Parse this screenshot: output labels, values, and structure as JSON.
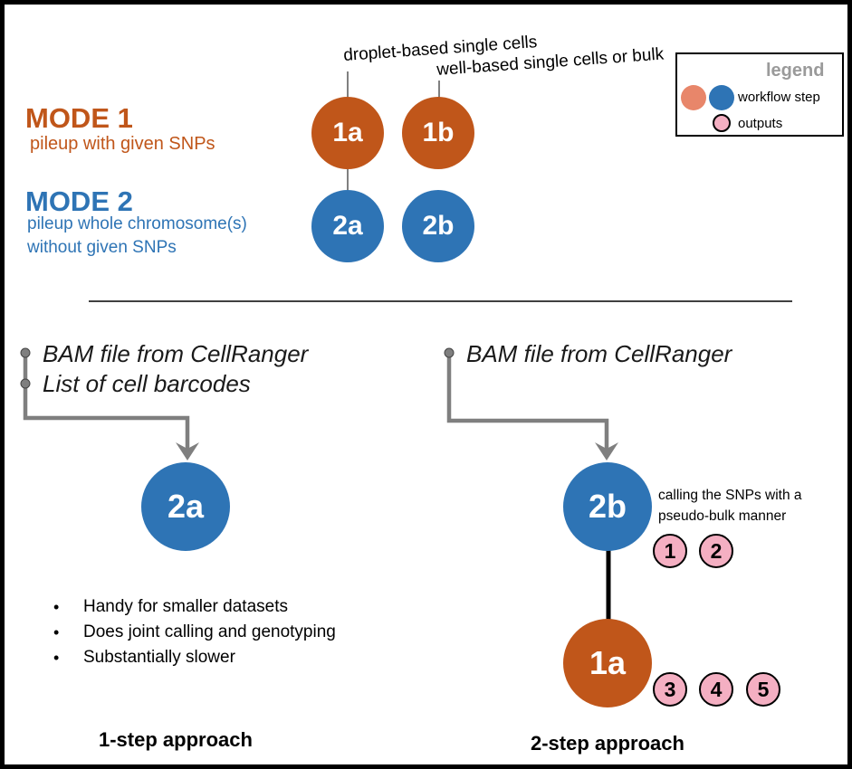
{
  "legend": {
    "title": "legend",
    "workflow_label": "workflow step",
    "outputs_label": "outputs",
    "title_color": "#9a9a9a"
  },
  "modes": [
    {
      "title": "MODE 1",
      "description": [
        "pileup with given SNPs"
      ],
      "color": "#C0561A"
    },
    {
      "title": "MODE 2",
      "description": [
        "pileup whole chromosome(s)",
        "without given SNPs"
      ],
      "color": "#2E74B5"
    }
  ],
  "top_nodes": {
    "n1a": "1a",
    "n1b": "1b",
    "n2a": "2a",
    "n2b": "2b"
  },
  "annotations": {
    "droplet": "droplet-based single cells",
    "well": "well-based single cells or bulk"
  },
  "one_step": {
    "inputs": [
      "BAM file from CellRanger",
      "List of cell barcodes"
    ],
    "node": "2a",
    "bullets": [
      "Handy for smaller datasets",
      "Does joint calling and genotyping",
      "Substantially slower"
    ],
    "title": "1-step approach"
  },
  "two_step": {
    "inputs": [
      "BAM file from CellRanger"
    ],
    "node_first": "2b",
    "node_second": "1a",
    "note": [
      "calling the SNPs with a",
      "pseudo-bulk manner"
    ],
    "outputs_first": [
      "1",
      "2"
    ],
    "outputs_second": [
      "3",
      "4",
      "5"
    ],
    "title": "2-step approach"
  },
  "colors": {
    "orange": "#C0561A",
    "blue": "#2E74B5",
    "pink": "#F4AFC2",
    "arrow": "#7f7f7f",
    "legend_orange": "#E8866A"
  }
}
